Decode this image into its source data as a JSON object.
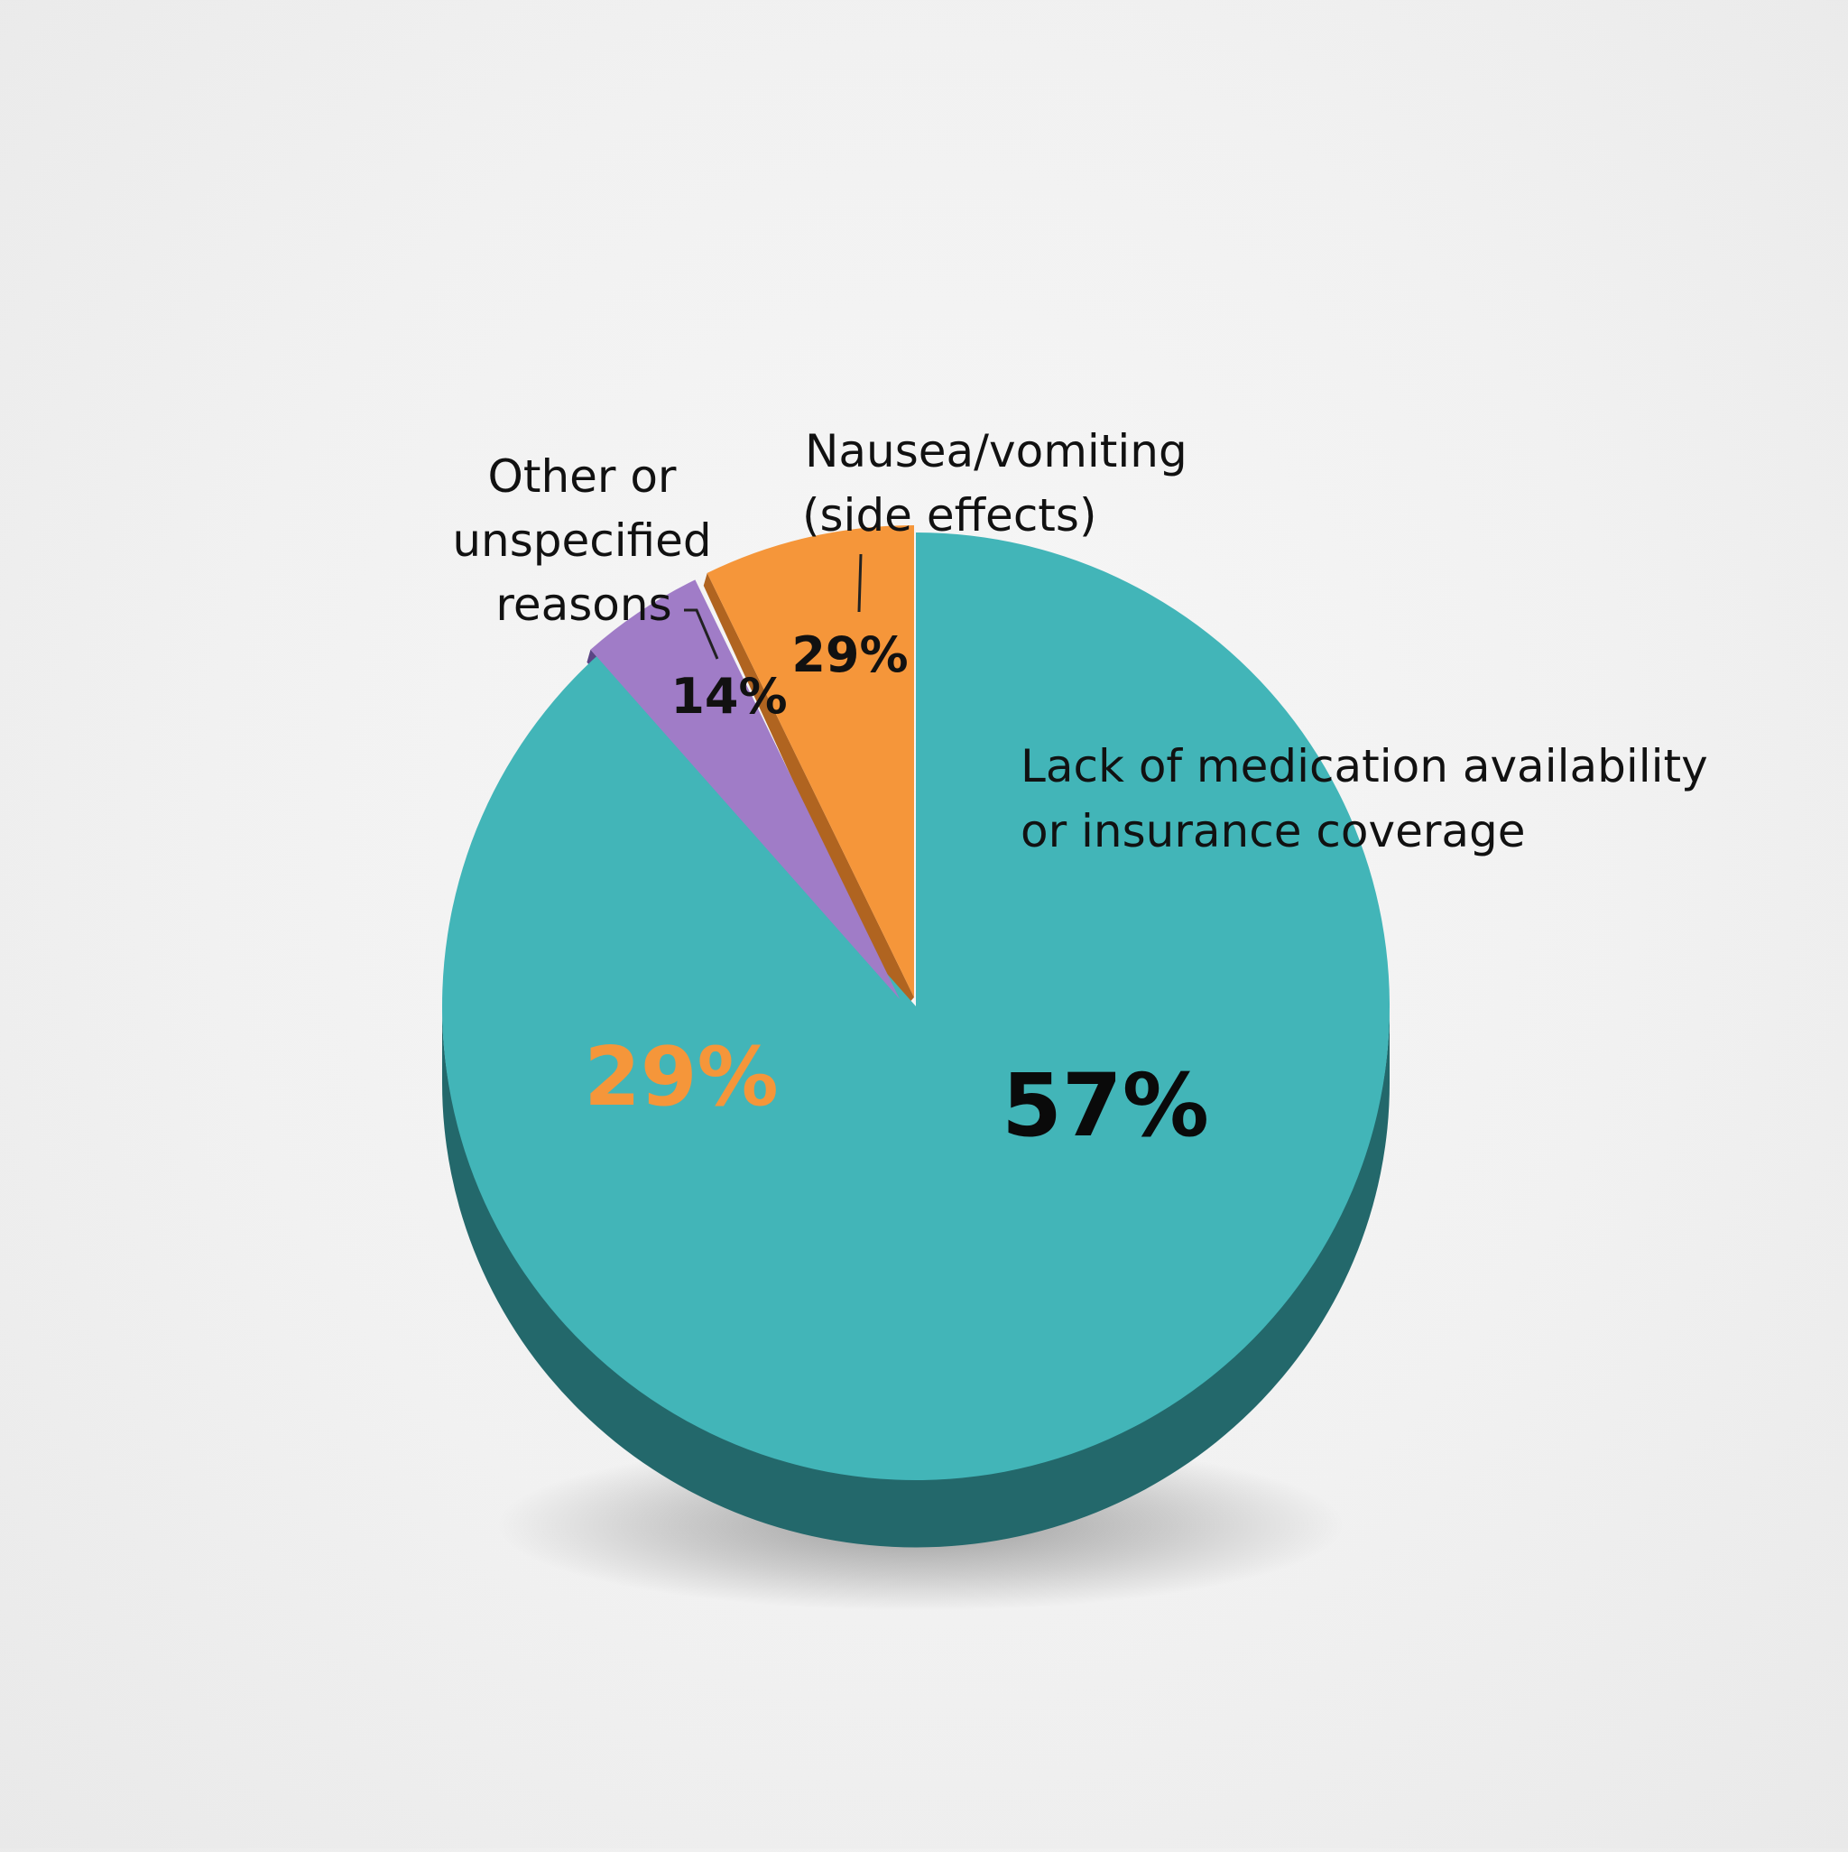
{
  "chart_data": {
    "type": "pie",
    "title": "",
    "slices": [
      {
        "label_lines": [
          "Lack of medication availability",
          "or insurance coverage"
        ],
        "value_label": "57%",
        "color": "#42b5b8",
        "side_color": "#23686b"
      },
      {
        "label_lines": [
          "Other or",
          "unspecified",
          "reasons"
        ],
        "value_label": "14%",
        "color": "#a07cc7",
        "side_color": "#5b4585"
      },
      {
        "label_lines": [
          "Nausea/vomiting",
          "(side effects)"
        ],
        "value_label": "29%",
        "color": "#f5963a",
        "side_color": "#b06420"
      }
    ],
    "extra_labels": [
      {
        "text": "29%",
        "color": "#f5963a"
      }
    ],
    "legend": "none"
  }
}
